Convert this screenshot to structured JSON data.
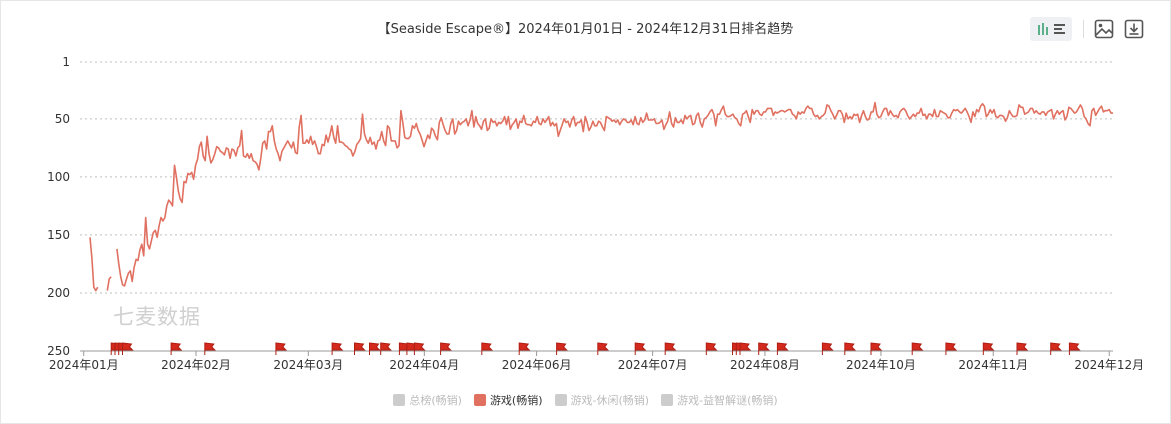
{
  "title": "【Seaside Escape®】2024年01月01日 - 2024年12月31日排名趋势",
  "watermark": "七麦数据",
  "toolbar": {
    "chart_toggle_icon": "chart-toggle-icon",
    "save_image_icon": "save-image-icon",
    "download_icon": "download-icon"
  },
  "legend": [
    {
      "label": "总榜(畅销)",
      "color": "#cccccc",
      "active": false
    },
    {
      "label": "游戏(畅销)",
      "color": "#e07060",
      "active": true
    },
    {
      "label": "游戏-休闲(畅销)",
      "color": "#cccccc",
      "active": false
    },
    {
      "label": "游戏-益智解谜(畅销)",
      "color": "#cccccc",
      "active": false
    }
  ],
  "chart_data": {
    "type": "line",
    "y_reversed": true,
    "ylim": [
      1,
      250
    ],
    "y_ticks": [
      "1",
      "50",
      "100",
      "150",
      "200",
      "250"
    ],
    "y_tick_values": [
      1,
      50,
      100,
      150,
      200,
      250
    ],
    "x_ticks": [
      "2024年01月",
      "2024年02月",
      "2024年03月",
      "2024年04月",
      "2024年06月",
      "2024年07月",
      "2024年08月",
      "2024年10月",
      "2024年11月",
      "2024年12月"
    ],
    "x_tick_days": [
      1,
      31,
      61,
      92,
      122,
      153,
      183,
      214,
      244,
      275
    ],
    "x_days_total": 276,
    "grid": "dotted horizontal",
    "series": [
      {
        "name": "游戏(畅销)",
        "color": "#e07060",
        "values": [
          152,
          170,
          195,
          198,
          195,
          null,
          null,
          null,
          null,
          198,
          188,
          186,
          null,
          null,
          162,
          175,
          186,
          193,
          194,
          188,
          183,
          181,
          190,
          178,
          171,
          172,
          163,
          158,
          168,
          135,
          158,
          162,
          155,
          148,
          146,
          152,
          142,
          135,
          138,
          135,
          125,
          120,
          122,
          125,
          90,
          100,
          112,
          119,
          122,
          104,
          105,
          97,
          98,
          96,
          102,
          90,
          85,
          74,
          70,
          82,
          86,
          65,
          80,
          88,
          85,
          80,
          74,
          75,
          78,
          79,
          81,
          75,
          76,
          84,
          76,
          77,
          82,
          75,
          73,
          60,
          82,
          83,
          80,
          84,
          80,
          86,
          87,
          89,
          94,
          84,
          71,
          69,
          76,
          61,
          61,
          56,
          69,
          76,
          80,
          86,
          78,
          75,
          72,
          69,
          72,
          75,
          70,
          79,
          80,
          57,
          47,
          71,
          71,
          68,
          71,
          65,
          72,
          69,
          74,
          80,
          80,
          72,
          73,
          64,
          70,
          64,
          56,
          66,
          71,
          56,
          70,
          70,
          71,
          73,
          74,
          76,
          77,
          82,
          78,
          72,
          70,
          67,
          46,
          63,
          68,
          71,
          66,
          72,
          70,
          76,
          69,
          68,
          61,
          69,
          73,
          56,
          58,
          69,
          69,
          69,
          75,
          73,
          43,
          53,
          66,
          67,
          67,
          65,
          56,
          58,
          54,
          60,
          63,
          68,
          74,
          69,
          64,
          67,
          58,
          60,
          65,
          68,
          53,
          49,
          55,
          60,
          63,
          63,
          54,
          50,
          63,
          60,
          52,
          55,
          53,
          52,
          50,
          56,
          51,
          43,
          57,
          48,
          54,
          56,
          59,
          52,
          50,
          60,
          58,
          50,
          53,
          52,
          56,
          53,
          54,
          52,
          48,
          55,
          48,
          59,
          55,
          53,
          50,
          58,
          52,
          53,
          47,
          54,
          55,
          55,
          56,
          52,
          53,
          48,
          54,
          55,
          50,
          53,
          51,
          48,
          56,
          53,
          56,
          54,
          65,
          60,
          55,
          50,
          53,
          52,
          57,
          51,
          48,
          56,
          53,
          53,
          51,
          61,
          48,
          53,
          60,
          57,
          52,
          56,
          56,
          52,
          53,
          57,
          60,
          48,
          49,
          50,
          52,
          51,
          53,
          51,
          55,
          52,
          50,
          51,
          53,
          53,
          51,
          55,
          48,
          54,
          55,
          49,
          53,
          51,
          45,
          51,
          51,
          51,
          50,
          54,
          54,
          53,
          51,
          59,
          55,
          52,
          44,
          54,
          57,
          49,
          53,
          53,
          51,
          54,
          47,
          50,
          48,
          47,
          55,
          54,
          47,
          45,
          53,
          57,
          50,
          49,
          47,
          44,
          42,
          46,
          56,
          46,
          46,
          42,
          39,
          46,
          48,
          48,
          47,
          46,
          49,
          50,
          54,
          56,
          46,
          45,
          43,
          48,
          53,
          42,
          46,
          43,
          43,
          46,
          47,
          44,
          44,
          41,
          41,
          41,
          47,
          44,
          45,
          44,
          43,
          43,
          44,
          43,
          42,
          42,
          46,
          47,
          50,
          44,
          46,
          44,
          45,
          41,
          39,
          41,
          41,
          46,
          48,
          47,
          50,
          48,
          47,
          45,
          38,
          39,
          43,
          46,
          50,
          47,
          43,
          43,
          46,
          53,
          45,
          50,
          48,
          50,
          46,
          47,
          46,
          53,
          47,
          43,
          48,
          51,
          50,
          44,
          44,
          36,
          46,
          49,
          48,
          44,
          41,
          41,
          47,
          43,
          46,
          48,
          47,
          49,
          44,
          42,
          41,
          43,
          47,
          50,
          48,
          46,
          48,
          45,
          45,
          41,
          47,
          46,
          50,
          46,
          46,
          48,
          42,
          48,
          48,
          43,
          44,
          45,
          46,
          49,
          49,
          45,
          42,
          43,
          42,
          44,
          45,
          43,
          41,
          44,
          48,
          53,
          44,
          48,
          42,
          44,
          39,
          37,
          39,
          48,
          46,
          42,
          45,
          42,
          48,
          49,
          47,
          47,
          48,
          52,
          49,
          43,
          46,
          48,
          48,
          47,
          38,
          40,
          40,
          46,
          45,
          44,
          41,
          41,
          45,
          43,
          45,
          46,
          44,
          44,
          47,
          44,
          43,
          42,
          50,
          46,
          43,
          46,
          44,
          43,
          51,
          48,
          40,
          41,
          43,
          45,
          44,
          41,
          38,
          41,
          48,
          50,
          54,
          56,
          43,
          41,
          47,
          44,
          41,
          39,
          44,
          43,
          43,
          42,
          45,
          45
        ]
      }
    ],
    "event_flags_days": [
      3,
      4,
      5,
      6,
      19,
      28,
      47,
      62,
      68,
      72,
      75,
      80,
      82,
      84,
      91,
      102,
      112,
      122,
      133,
      143,
      151,
      162,
      169,
      170,
      171,
      176,
      181,
      193,
      199,
      206,
      217,
      226,
      236,
      245,
      254,
      259
    ]
  }
}
